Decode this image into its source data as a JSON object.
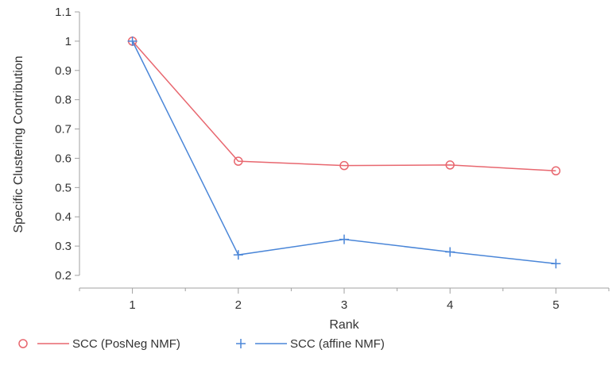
{
  "chart_data": {
    "type": "line",
    "xlabel": "Rank",
    "ylabel": "Specific Clustering Contribution",
    "x": [
      1,
      2,
      3,
      4,
      5
    ],
    "xlim": [
      0.5,
      5.5
    ],
    "ylim": [
      0.2,
      1.1
    ],
    "yticks": [
      0.2,
      0.3,
      0.4,
      0.5,
      0.6,
      0.7,
      0.8,
      0.9,
      1,
      1.1
    ],
    "ytick_labels": [
      "0.2",
      "0.3",
      "0.4",
      "0.5",
      "0.6",
      "0.7",
      "0.8",
      "0.9",
      "1",
      "1.1"
    ],
    "xticks": [
      1,
      2,
      3,
      4,
      5
    ],
    "xtick_labels": [
      "1",
      "2",
      "3",
      "4",
      "5"
    ],
    "grid": false,
    "legend_position": "bottom",
    "series": [
      {
        "name": "SCC (PosNeg NMF)",
        "values": [
          1.0,
          0.59,
          0.575,
          0.577,
          0.557
        ],
        "color": "#e8676f",
        "marker": "circle"
      },
      {
        "name": "SCC (affine NMF)",
        "values": [
          1.0,
          0.27,
          0.323,
          0.28,
          0.24
        ],
        "color": "#4a86d8",
        "marker": "plus"
      }
    ]
  }
}
